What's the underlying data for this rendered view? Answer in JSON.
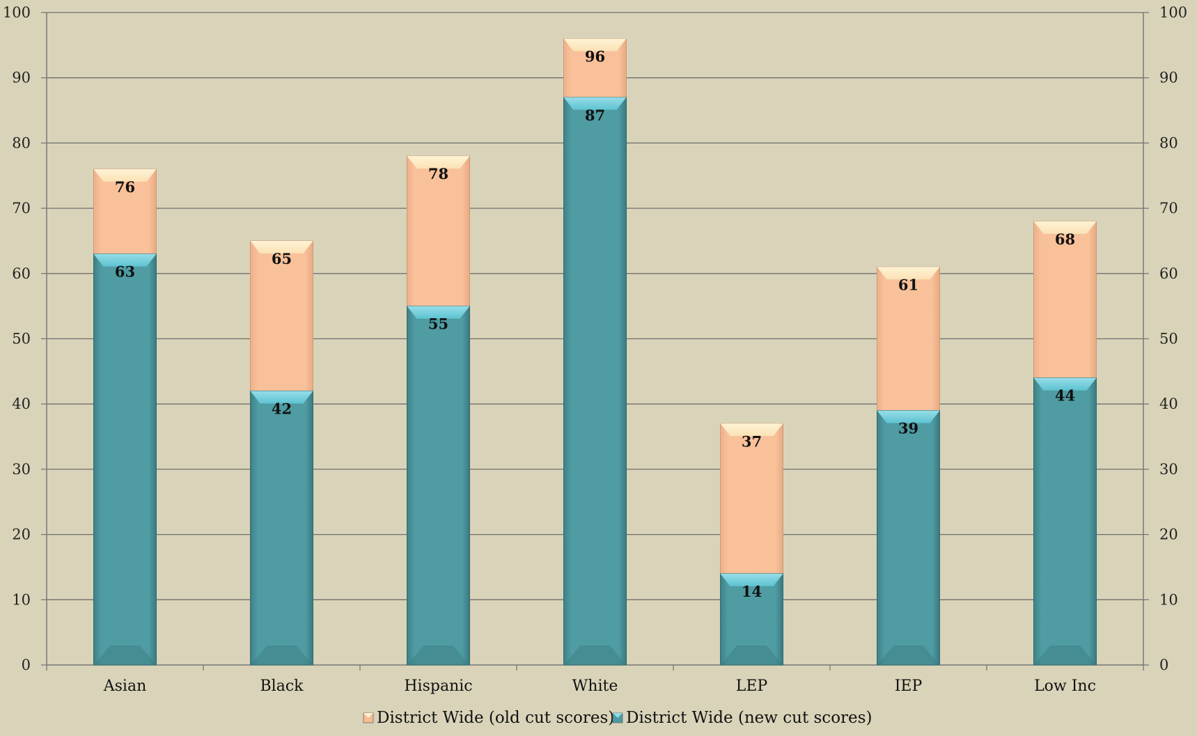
{
  "chart_data": {
    "type": "bar",
    "stacked": false,
    "overlapped": true,
    "categories": [
      "Asian",
      "Black",
      "Hispanic",
      "White",
      "LEP",
      "IEP",
      "Low Inc"
    ],
    "series": [
      {
        "name": "District Wide (old cut scores)",
        "values": [
          76,
          65,
          78,
          96,
          37,
          61,
          68
        ],
        "color": "#f7bd92"
      },
      {
        "name": "District Wide (new cut scores)",
        "values": [
          63,
          42,
          55,
          87,
          14,
          39,
          44
        ],
        "color": "#4e9aa1"
      }
    ],
    "ylim": [
      0,
      100
    ],
    "y_ticks": [
      0,
      10,
      20,
      30,
      40,
      50,
      60,
      70,
      80,
      90,
      100
    ],
    "y_tick_labels": [
      "0",
      "10",
      "20",
      "30",
      "40",
      "50",
      "60",
      "70",
      "80",
      "90",
      "100"
    ],
    "secondary_y_axis": true,
    "grid": true,
    "legend_position": "bottom",
    "data_labels": true,
    "title": "",
    "xlabel": "",
    "ylabel": ""
  }
}
